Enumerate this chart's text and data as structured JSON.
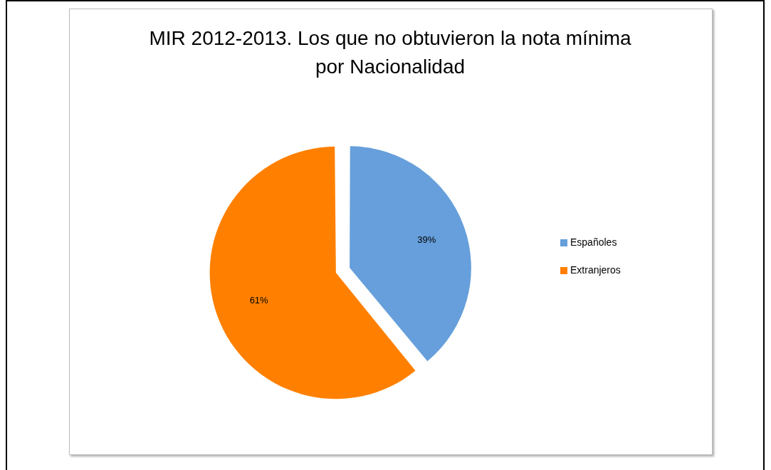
{
  "chart_data": {
    "type": "pie",
    "title": "MIR 2012-2013. Los que no obtuvieron la nota mínima por Nacionalidad",
    "categories": [
      "Españoles",
      "Extranjeros"
    ],
    "values": [
      39,
      61
    ],
    "colors": [
      "#669fdb",
      "#ff8000"
    ],
    "value_labels": [
      "39%",
      "61%"
    ],
    "legend": "right"
  }
}
